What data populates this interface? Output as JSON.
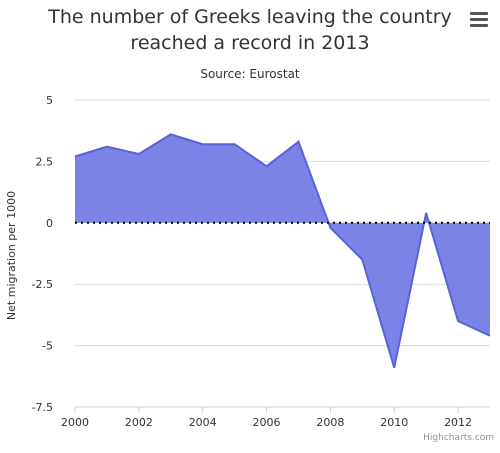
{
  "chart_data": {
    "type": "area",
    "title": "The number of Greeks leaving the country reached a record in 2013",
    "title_lines": [
      "The number of Greeks leaving the country",
      "reached a record in 2013"
    ],
    "subtitle": "Source: Eurostat",
    "xlabel": "",
    "ylabel": "Net migration per 1000",
    "x": [
      2000,
      2001,
      2002,
      2003,
      2004,
      2005,
      2006,
      2007,
      2008,
      2009,
      2010,
      2011,
      2012,
      2013
    ],
    "series": [
      {
        "values": [
          2.7,
          3.1,
          2.8,
          3.6,
          3.2,
          3.2,
          2.3,
          3.3,
          -0.2,
          -1.5,
          -5.9,
          0.4,
          -4.0,
          -4.6
        ]
      }
    ],
    "ylim": [
      -7.5,
      5
    ],
    "xlim": [
      2000,
      2013
    ],
    "yticks": [
      5,
      2.5,
      0,
      -2.5,
      -5,
      -7.5
    ],
    "ytick_labels": [
      "5",
      "2.5",
      "0",
      "-2.5",
      "-5",
      "-7.5"
    ],
    "xticks": [
      2000,
      2002,
      2004,
      2006,
      2008,
      2010,
      2012
    ],
    "xtick_labels": [
      "2000",
      "2002",
      "2004",
      "2006",
      "2008",
      "2010",
      "2012"
    ],
    "grid": true,
    "legend": "none",
    "colors": {
      "fill": "#7b83e6",
      "line": "#5a62d6",
      "grid": "#d8d8d8",
      "axis": "#c0d0e0",
      "text": "#333333"
    }
  },
  "menu_icon": "hamburger-menu-icon",
  "credits": "Highcharts.com"
}
